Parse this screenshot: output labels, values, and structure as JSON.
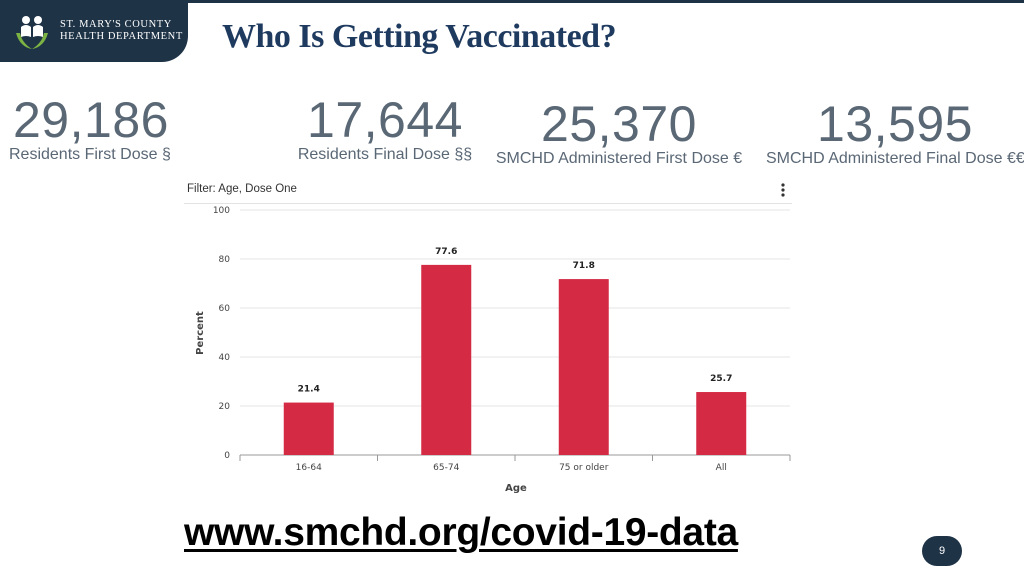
{
  "header": {
    "logo_line1": "ST. MARY'S COUNTY",
    "logo_line2": "HEALTH DEPARTMENT",
    "title": "Who Is Getting Vaccinated?"
  },
  "stats": [
    {
      "value": "29,186",
      "label": "Residents First Dose §"
    },
    {
      "value": "17,644",
      "label": "Residents Final Dose §§"
    },
    {
      "value": "25,370",
      "label": "SMCHD Administered First Dose €"
    },
    {
      "value": "13,595",
      "label": "SMCHD Administered Final Dose €€"
    }
  ],
  "chart_card": {
    "filter_label": "Filter: Age, Dose One",
    "menu_icon": "more-vertical-icon"
  },
  "chart_data": {
    "type": "bar",
    "categories": [
      "16-64",
      "65-74",
      "75 or older",
      "All"
    ],
    "values": [
      21.4,
      77.6,
      71.8,
      25.7
    ],
    "value_labels": [
      "21.4",
      "77.6",
      "71.8",
      "25.7"
    ],
    "title": "",
    "xlabel": "Age",
    "ylabel": "Percent",
    "ylim": [
      0,
      100
    ],
    "yticks": [
      "0",
      "20",
      "40",
      "60",
      "80",
      "100"
    ],
    "grid": true,
    "bar_color": "#d42a44",
    "grid_color": "#e6e6e6"
  },
  "footer": {
    "url": "www.smchd.org/covid-19-data",
    "page_number": "9"
  },
  "colors": {
    "brand_navy": "#1f3347",
    "title_blue": "#1f3a5f",
    "stat_gray": "#5a6775"
  }
}
